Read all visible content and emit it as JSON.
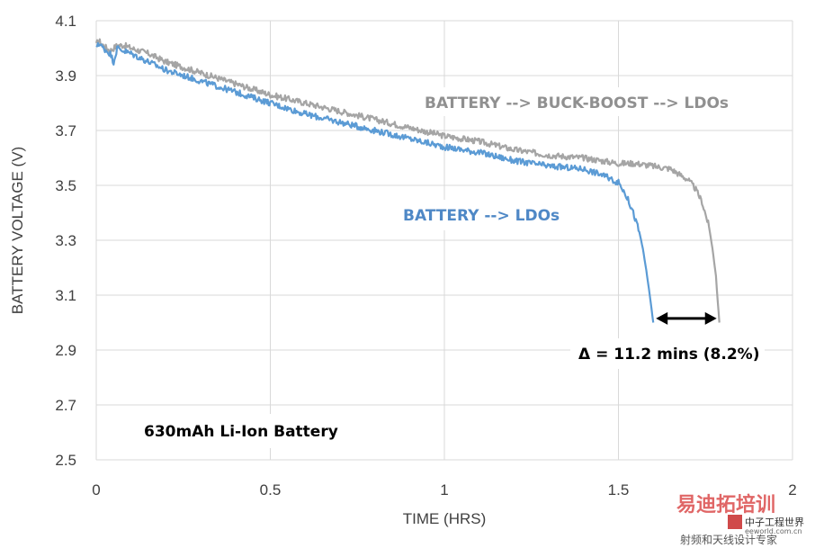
{
  "chart_data": {
    "type": "line",
    "title": "",
    "xlabel": "TIME (HRS)",
    "ylabel": "BATTERY VOLTAGE (V)",
    "xlim": [
      0,
      2
    ],
    "ylim": [
      2.5,
      4.1
    ],
    "x_ticks": [
      0,
      0.5,
      1,
      1.5,
      2
    ],
    "x_tick_labels": [
      "0",
      "0.5",
      "1",
      "1.5",
      "2"
    ],
    "y_ticks": [
      2.5,
      2.7,
      2.9,
      3.1,
      3.3,
      3.5,
      3.7,
      3.9,
      4.1
    ],
    "y_tick_labels": [
      "2.5",
      "2.7",
      "2.9",
      "3.1",
      "3.3",
      "3.5",
      "3.7",
      "3.9",
      "4.1"
    ],
    "grid": true,
    "series": [
      {
        "name": "BATTERY --> BUCK-BOOST --> LDOs",
        "color": "#a5a5a5",
        "x": [
          0,
          0.005,
          0.02,
          0.04,
          0.06,
          0.08,
          0.1,
          0.15,
          0.2,
          0.3,
          0.4,
          0.5,
          0.6,
          0.7,
          0.8,
          0.9,
          1.0,
          1.1,
          1.2,
          1.3,
          1.4,
          1.5,
          1.55,
          1.6,
          1.65,
          1.7,
          1.72,
          1.74,
          1.76,
          1.77,
          1.78,
          1.785,
          1.79
        ],
        "y": [
          4.01,
          4.03,
          4.01,
          3.99,
          4.01,
          4.01,
          4.0,
          3.98,
          3.95,
          3.91,
          3.87,
          3.83,
          3.8,
          3.77,
          3.74,
          3.71,
          3.68,
          3.66,
          3.63,
          3.61,
          3.6,
          3.58,
          3.58,
          3.57,
          3.56,
          3.52,
          3.49,
          3.44,
          3.35,
          3.27,
          3.17,
          3.08,
          3.0
        ]
      },
      {
        "name": "BATTERY --> LDOs",
        "color": "#5b9bd5",
        "x": [
          0,
          0.005,
          0.02,
          0.04,
          0.05,
          0.06,
          0.08,
          0.1,
          0.15,
          0.2,
          0.3,
          0.4,
          0.5,
          0.6,
          0.7,
          0.8,
          0.9,
          1.0,
          1.1,
          1.2,
          1.3,
          1.4,
          1.45,
          1.5,
          1.52,
          1.54,
          1.56,
          1.57,
          1.58,
          1.59,
          1.595,
          1.6
        ],
        "y": [
          4.0,
          4.02,
          4.0,
          3.98,
          3.95,
          4.0,
          3.99,
          3.98,
          3.95,
          3.92,
          3.88,
          3.84,
          3.8,
          3.76,
          3.73,
          3.7,
          3.67,
          3.64,
          3.62,
          3.59,
          3.57,
          3.56,
          3.54,
          3.51,
          3.47,
          3.41,
          3.33,
          3.27,
          3.19,
          3.1,
          3.05,
          3.0
        ]
      }
    ],
    "annotations": [
      {
        "text": "BATTERY --> BUCK-BOOST --> LDOs",
        "color": "#909090"
      },
      {
        "text": "BATTERY --> LDOs",
        "color": "#4f88c6"
      },
      {
        "text": "Δ = 11.2 mins (8.2%)",
        "color": "#000000"
      },
      {
        "text": "630mAh Li-Ion Battery",
        "color": "#000000"
      }
    ],
    "delta_arrow": {
      "x_start": 1.6,
      "x_end": 1.79,
      "y": 3.015
    }
  },
  "watermark": {
    "line1": "易迪拓培训",
    "line2": "中子工程世界",
    "line3": "射频和天线设计专家",
    "line4": "eeworld.com.cn"
  }
}
